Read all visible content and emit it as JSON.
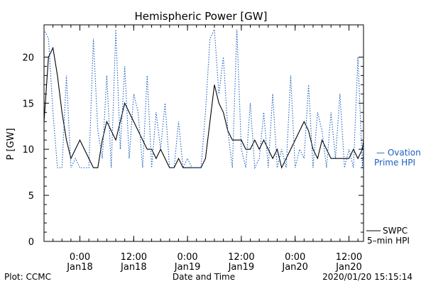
{
  "chart_data": {
    "type": "line",
    "title": "Hemispheric Power [GW]",
    "ylabel": "P [GW]",
    "xlabel": "Date and Time",
    "ylim": [
      0,
      23.5
    ],
    "xlim": [
      "2020-01-17 16:00",
      "2020-01-20 15:15"
    ],
    "grid": false,
    "yticks": [
      0,
      5,
      10,
      15,
      20
    ],
    "xticks": [
      {
        "time": "2020-01-18 00:00",
        "label": [
          "0:00",
          "Jan18"
        ]
      },
      {
        "time": "2020-01-18 12:00",
        "label": [
          "12:00",
          "Jan18"
        ]
      },
      {
        "time": "2020-01-19 00:00",
        "label": [
          "0:00",
          "Jan19"
        ]
      },
      {
        "time": "2020-01-19 12:00",
        "label": [
          "12:00",
          "Jan19"
        ]
      },
      {
        "time": "2020-01-20 00:00",
        "label": [
          "0:00",
          "Jan20"
        ]
      },
      {
        "time": "2020-01-20 12:00",
        "label": [
          "12:00",
          "Jan20"
        ]
      }
    ],
    "series": [
      {
        "name": "SWPC 5-min HPI",
        "style": "solid",
        "color": "#000000",
        "x": [
          "2020-01-17 16:00",
          "2020-01-17 17:00",
          "2020-01-17 18:00",
          "2020-01-17 19:00",
          "2020-01-17 20:00",
          "2020-01-17 21:00",
          "2020-01-17 22:00",
          "2020-01-17 23:00",
          "2020-01-18 00:00",
          "2020-01-18 01:00",
          "2020-01-18 02:00",
          "2020-01-18 03:00",
          "2020-01-18 04:00",
          "2020-01-18 05:00",
          "2020-01-18 06:00",
          "2020-01-18 07:00",
          "2020-01-18 08:00",
          "2020-01-18 09:00",
          "2020-01-18 10:00",
          "2020-01-18 11:00",
          "2020-01-18 12:00",
          "2020-01-18 13:00",
          "2020-01-18 14:00",
          "2020-01-18 15:00",
          "2020-01-18 16:00",
          "2020-01-18 17:00",
          "2020-01-18 18:00",
          "2020-01-18 19:00",
          "2020-01-18 20:00",
          "2020-01-18 21:00",
          "2020-01-18 22:00",
          "2020-01-18 23:00",
          "2020-01-19 00:00",
          "2020-01-19 01:00",
          "2020-01-19 02:00",
          "2020-01-19 03:00",
          "2020-01-19 04:00",
          "2020-01-19 05:00",
          "2020-01-19 06:00",
          "2020-01-19 07:00",
          "2020-01-19 08:00",
          "2020-01-19 09:00",
          "2020-01-19 10:00",
          "2020-01-19 11:00",
          "2020-01-19 12:00",
          "2020-01-19 13:00",
          "2020-01-19 14:00",
          "2020-01-19 15:00",
          "2020-01-19 16:00",
          "2020-01-19 17:00",
          "2020-01-19 18:00",
          "2020-01-19 19:00",
          "2020-01-19 20:00",
          "2020-01-19 21:00",
          "2020-01-19 22:00",
          "2020-01-19 23:00",
          "2020-01-20 00:00",
          "2020-01-20 01:00",
          "2020-01-20 02:00",
          "2020-01-20 03:00",
          "2020-01-20 04:00",
          "2020-01-20 05:00",
          "2020-01-20 06:00",
          "2020-01-20 07:00",
          "2020-01-20 08:00",
          "2020-01-20 09:00",
          "2020-01-20 10:00",
          "2020-01-20 11:00",
          "2020-01-20 12:00",
          "2020-01-20 13:00",
          "2020-01-20 14:00",
          "2020-01-20 15:00",
          "2020-01-20 15:15"
        ],
        "y": [
          13,
          20,
          21,
          18,
          14,
          11,
          9,
          10,
          11,
          10,
          9,
          8,
          8,
          11,
          13,
          12,
          11,
          13,
          15,
          14,
          13,
          12,
          11,
          10,
          10,
          9,
          10,
          9,
          8,
          8,
          9,
          8,
          8,
          8,
          8,
          8,
          9,
          13,
          17,
          15,
          14,
          12,
          11,
          11,
          11,
          10,
          10,
          11,
          10,
          11,
          10,
          9,
          10,
          8,
          9,
          10,
          11,
          12,
          13,
          12,
          10,
          9,
          11,
          10,
          9,
          9,
          9,
          9,
          9,
          10,
          9,
          10,
          11
        ]
      },
      {
        "name": "Ovation Prime HPI",
        "style": "dotted",
        "color": "#1a5fbf",
        "x": [
          "2020-01-17 16:00",
          "2020-01-17 17:00",
          "2020-01-17 18:00",
          "2020-01-17 19:00",
          "2020-01-17 20:00",
          "2020-01-17 21:00",
          "2020-01-17 22:00",
          "2020-01-17 23:00",
          "2020-01-18 00:00",
          "2020-01-18 01:00",
          "2020-01-18 02:00",
          "2020-01-18 03:00",
          "2020-01-18 04:00",
          "2020-01-18 05:00",
          "2020-01-18 06:00",
          "2020-01-18 07:00",
          "2020-01-18 08:00",
          "2020-01-18 09:00",
          "2020-01-18 10:00",
          "2020-01-18 11:00",
          "2020-01-18 12:00",
          "2020-01-18 13:00",
          "2020-01-18 14:00",
          "2020-01-18 15:00",
          "2020-01-18 16:00",
          "2020-01-18 17:00",
          "2020-01-18 18:00",
          "2020-01-18 19:00",
          "2020-01-18 20:00",
          "2020-01-18 21:00",
          "2020-01-18 22:00",
          "2020-01-18 23:00",
          "2020-01-19 00:00",
          "2020-01-19 01:00",
          "2020-01-19 02:00",
          "2020-01-19 03:00",
          "2020-01-19 04:00",
          "2020-01-19 05:00",
          "2020-01-19 06:00",
          "2020-01-19 07:00",
          "2020-01-19 08:00",
          "2020-01-19 09:00",
          "2020-01-19 10:00",
          "2020-01-19 11:00",
          "2020-01-19 12:00",
          "2020-01-19 13:00",
          "2020-01-19 14:00",
          "2020-01-19 15:00",
          "2020-01-19 16:00",
          "2020-01-19 17:00",
          "2020-01-19 18:00",
          "2020-01-19 19:00",
          "2020-01-19 20:00",
          "2020-01-19 21:00",
          "2020-01-19 22:00",
          "2020-01-19 23:00",
          "2020-01-20 00:00",
          "2020-01-20 01:00",
          "2020-01-20 02:00",
          "2020-01-20 03:00",
          "2020-01-20 04:00",
          "2020-01-20 05:00",
          "2020-01-20 06:00",
          "2020-01-20 07:00",
          "2020-01-20 08:00",
          "2020-01-20 09:00",
          "2020-01-20 10:00",
          "2020-01-20 11:00",
          "2020-01-20 12:00",
          "2020-01-20 13:00",
          "2020-01-20 14:00",
          "2020-01-20 15:00",
          "2020-01-20 15:15"
        ],
        "y": [
          23,
          22,
          14,
          8,
          8,
          18,
          8,
          9,
          8,
          8,
          8,
          22,
          12,
          9,
          18,
          8,
          23,
          10,
          19,
          9,
          16,
          14,
          8,
          18,
          8,
          14,
          10,
          15,
          8,
          8,
          13,
          8,
          9,
          8,
          8,
          8,
          14,
          22,
          23,
          16,
          20,
          12,
          8,
          23,
          10,
          8,
          15,
          8,
          9,
          14,
          8,
          16,
          8,
          10,
          8,
          18,
          8,
          10,
          9,
          17,
          8,
          14,
          12,
          8,
          14,
          9,
          16,
          8,
          10,
          8,
          20,
          8,
          11
        ]
      }
    ],
    "legend": {
      "placement": "right",
      "entries": [
        {
          "marker": "— Ovation",
          "text": "Prime HPI",
          "color": "#1a5fbf"
        },
        {
          "marker": "SWPC",
          "text": "5–min HPI",
          "color": "#000000"
        }
      ]
    },
    "footer": {
      "left": "Plot: CCMC",
      "right": "2020/01/20 15:15:14"
    }
  }
}
